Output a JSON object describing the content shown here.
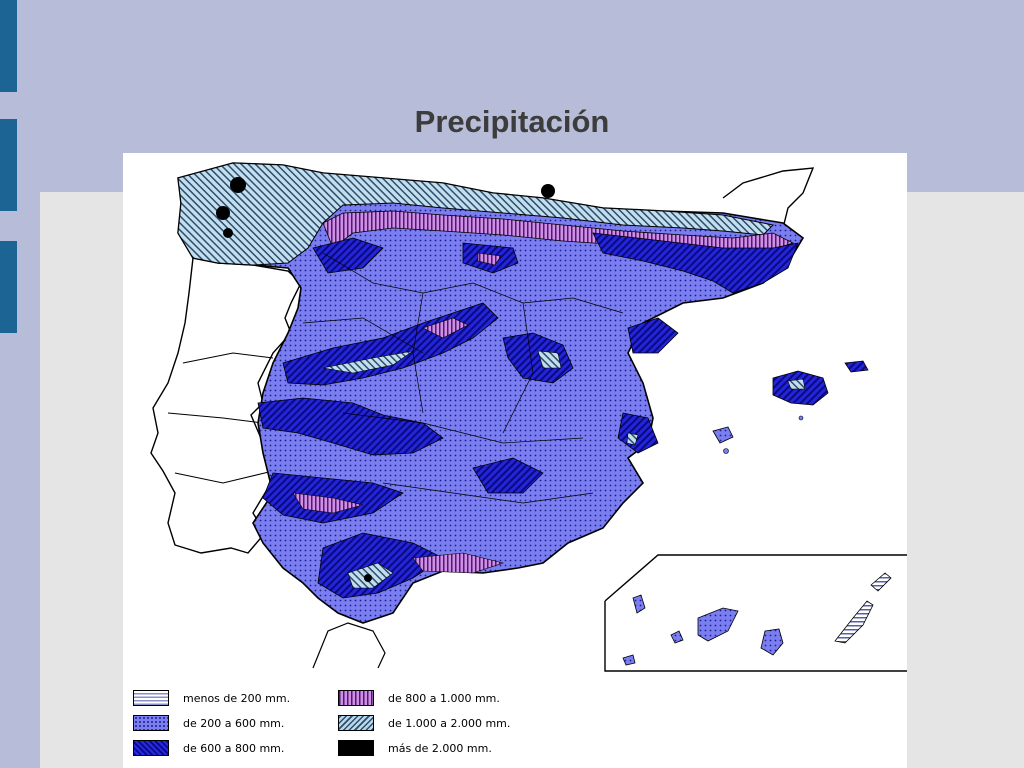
{
  "slide": {
    "title": "Precipitación"
  },
  "legend": {
    "items": [
      {
        "label": "menos de 200 mm.",
        "pattern": "horizontal-lines",
        "color": "#8a90c8"
      },
      {
        "label": "de 200 a 600 mm.",
        "pattern": "dotted",
        "color": "#7a7ef0"
      },
      {
        "label": "de 600 a 800 mm.",
        "pattern": "dark-diagonal",
        "color": "#1a1ad0"
      },
      {
        "label": "de 800 a 1.000 mm.",
        "pattern": "vertical-lines",
        "color": "#d08ee8"
      },
      {
        "label": "de 1.000 a 2.000 mm.",
        "pattern": "light-diagonal",
        "color": "#b6d8e8"
      },
      {
        "label": "más de 2.000 mm.",
        "pattern": "solid",
        "color": "#000000"
      }
    ]
  },
  "colors": {
    "background": "#b7bcd9",
    "accent": "#1c6493",
    "panel": "#e5e5e5",
    "title": "#3c3c3c"
  }
}
